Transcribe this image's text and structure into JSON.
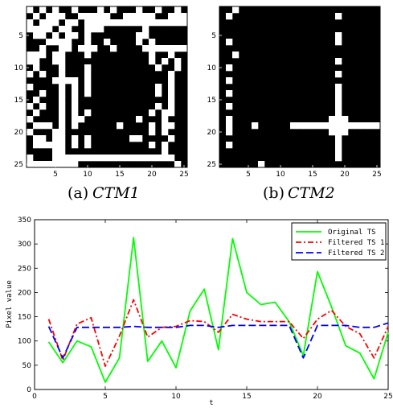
{
  "chart_data": [
    {
      "type": "heatmap",
      "panel": "a",
      "caption_prefix": "(a)",
      "caption_math": "CTM1",
      "size": 25,
      "xticks": [
        5,
        10,
        15,
        20,
        25
      ],
      "yticks": [
        5,
        10,
        15,
        20,
        25
      ],
      "colors": {
        "on": "#ffffff",
        "off": "#000000"
      },
      "on_cells": [
        [
          1,
          1
        ],
        [
          1,
          3
        ],
        [
          1,
          5
        ],
        [
          1,
          8
        ],
        [
          1,
          12
        ],
        [
          1,
          14
        ],
        [
          1,
          18
        ],
        [
          1,
          21
        ],
        [
          1,
          24
        ],
        [
          2,
          2
        ],
        [
          2,
          4
        ],
        [
          2,
          5
        ],
        [
          2,
          6
        ],
        [
          2,
          9
        ],
        [
          2,
          10
        ],
        [
          2,
          11
        ],
        [
          2,
          12
        ],
        [
          2,
          13
        ],
        [
          2,
          16
        ],
        [
          2,
          17
        ],
        [
          2,
          18
        ],
        [
          2,
          19
        ],
        [
          2,
          20
        ],
        [
          2,
          23
        ],
        [
          2,
          24
        ],
        [
          2,
          25
        ],
        [
          3,
          1
        ],
        [
          3,
          3
        ],
        [
          3,
          4
        ],
        [
          3,
          5
        ],
        [
          3,
          7
        ],
        [
          3,
          8
        ],
        [
          3,
          10
        ],
        [
          3,
          11
        ],
        [
          3,
          12
        ],
        [
          3,
          13
        ],
        [
          3,
          14
        ],
        [
          3,
          15
        ],
        [
          3,
          16
        ],
        [
          3,
          17
        ],
        [
          3,
          18
        ],
        [
          3,
          19
        ],
        [
          3,
          20
        ],
        [
          3,
          21
        ],
        [
          3,
          22
        ],
        [
          3,
          23
        ],
        [
          3,
          24
        ],
        [
          3,
          25
        ],
        [
          4,
          1
        ],
        [
          4,
          2
        ],
        [
          4,
          3
        ],
        [
          4,
          4
        ],
        [
          4,
          6
        ],
        [
          4,
          7
        ],
        [
          4,
          10
        ],
        [
          4,
          11
        ],
        [
          4,
          12
        ],
        [
          4,
          19
        ],
        [
          5,
          2
        ],
        [
          5,
          3
        ],
        [
          5,
          5
        ],
        [
          5,
          7
        ],
        [
          5,
          8
        ],
        [
          5,
          10
        ],
        [
          5,
          18
        ],
        [
          5,
          19
        ],
        [
          6,
          4
        ],
        [
          6,
          5
        ],
        [
          6,
          6
        ],
        [
          6,
          7
        ],
        [
          6,
          10
        ],
        [
          6,
          13
        ],
        [
          6,
          18
        ],
        [
          6,
          20
        ],
        [
          7,
          3
        ],
        [
          7,
          6
        ],
        [
          7,
          7
        ],
        [
          7,
          9
        ],
        [
          7,
          10
        ],
        [
          7,
          11
        ],
        [
          7,
          14
        ],
        [
          7,
          19
        ],
        [
          7,
          20
        ],
        [
          7,
          21
        ],
        [
          7,
          22
        ],
        [
          7,
          23
        ],
        [
          7,
          24
        ],
        [
          7,
          25
        ],
        [
          8,
          1
        ],
        [
          8,
          2
        ],
        [
          8,
          3
        ],
        [
          8,
          5
        ],
        [
          8,
          6
        ],
        [
          8,
          10
        ],
        [
          8,
          20
        ],
        [
          8,
          23
        ],
        [
          9,
          1
        ],
        [
          9,
          2
        ],
        [
          9,
          5
        ],
        [
          9,
          6
        ],
        [
          9,
          20
        ],
        [
          9,
          22
        ],
        [
          9,
          24
        ],
        [
          10,
          2
        ],
        [
          10,
          6
        ],
        [
          10,
          10
        ],
        [
          10,
          21
        ],
        [
          10,
          24
        ],
        [
          11,
          1
        ],
        [
          11,
          3
        ],
        [
          11,
          6
        ],
        [
          11,
          10
        ],
        [
          11,
          23
        ],
        [
          12,
          5
        ],
        [
          12,
          6
        ],
        [
          12,
          7
        ],
        [
          12,
          8
        ],
        [
          12,
          10
        ],
        [
          12,
          23
        ],
        [
          13,
          1
        ],
        [
          13,
          6
        ],
        [
          13,
          8
        ],
        [
          13,
          10
        ],
        [
          13,
          21
        ],
        [
          13,
          23
        ],
        [
          14,
          3
        ],
        [
          14,
          6
        ],
        [
          14,
          8
        ],
        [
          14,
          10
        ],
        [
          14,
          21
        ],
        [
          14,
          23
        ],
        [
          15,
          2
        ],
        [
          15,
          6
        ],
        [
          15,
          8
        ],
        [
          15,
          23
        ],
        [
          16,
          1
        ],
        [
          16,
          3
        ],
        [
          16,
          6
        ],
        [
          16,
          8
        ],
        [
          16,
          21
        ],
        [
          16,
          23
        ],
        [
          17,
          2
        ],
        [
          17,
          6
        ],
        [
          17,
          8
        ],
        [
          17,
          10
        ],
        [
          17,
          20
        ],
        [
          17,
          22
        ],
        [
          17,
          23
        ],
        [
          18,
          1
        ],
        [
          18,
          6
        ],
        [
          18,
          8
        ],
        [
          18,
          9
        ],
        [
          18,
          18
        ],
        [
          18,
          22
        ],
        [
          19,
          2
        ],
        [
          19,
          3
        ],
        [
          19,
          4
        ],
        [
          19,
          6
        ],
        [
          19,
          8
        ],
        [
          19,
          15
        ],
        [
          19,
          20
        ],
        [
          19,
          22
        ],
        [
          19,
          23
        ],
        [
          20,
          1
        ],
        [
          20,
          5
        ],
        [
          20,
          6
        ],
        [
          20,
          20
        ],
        [
          20,
          22
        ],
        [
          21,
          2
        ],
        [
          21,
          3
        ],
        [
          21,
          5
        ],
        [
          21,
          6
        ],
        [
          21,
          8
        ],
        [
          21,
          10
        ],
        [
          21,
          17
        ],
        [
          21,
          18
        ],
        [
          21,
          23
        ],
        [
          22,
          2
        ],
        [
          22,
          3
        ],
        [
          22,
          4
        ],
        [
          22,
          5
        ],
        [
          22,
          6
        ],
        [
          22,
          8
        ],
        [
          22,
          10
        ],
        [
          22,
          20
        ],
        [
          22,
          22
        ],
        [
          23,
          5
        ],
        [
          23,
          6
        ],
        [
          23,
          22
        ],
        [
          24,
          1
        ],
        [
          24,
          5
        ],
        [
          24,
          6
        ],
        [
          24,
          7
        ],
        [
          24,
          8
        ],
        [
          24,
          9
        ],
        [
          24,
          10
        ],
        [
          24,
          11
        ],
        [
          24,
          12
        ],
        [
          24,
          13
        ],
        [
          24,
          14
        ],
        [
          24,
          15
        ],
        [
          24,
          16
        ],
        [
          24,
          17
        ],
        [
          24,
          18
        ],
        [
          24,
          19
        ],
        [
          24,
          20
        ],
        [
          24,
          21
        ],
        [
          24,
          22
        ],
        [
          24,
          23
        ],
        [
          25,
          1
        ],
        [
          25,
          2
        ],
        [
          25,
          3
        ],
        [
          25,
          4
        ],
        [
          25,
          5
        ],
        [
          25,
          6
        ],
        [
          25,
          7
        ],
        [
          25,
          8
        ],
        [
          25,
          24
        ]
      ]
    },
    {
      "type": "heatmap",
      "panel": "b",
      "caption_prefix": "(b)",
      "caption_math": "CTM2",
      "size": 25,
      "xticks": [
        5,
        10,
        15,
        20,
        25
      ],
      "yticks": [
        5,
        10,
        15,
        20,
        25
      ],
      "colors": {
        "on": "#ffffff",
        "off": "#000000"
      },
      "on_cells": [
        [
          1,
          3
        ],
        [
          2,
          2
        ],
        [
          2,
          19
        ],
        [
          5,
          19
        ],
        [
          6,
          2
        ],
        [
          6,
          19
        ],
        [
          8,
          3
        ],
        [
          9,
          19
        ],
        [
          10,
          2
        ],
        [
          11,
          19
        ],
        [
          12,
          2
        ],
        [
          13,
          19
        ],
        [
          14,
          2
        ],
        [
          14,
          19
        ],
        [
          15,
          19
        ],
        [
          16,
          2
        ],
        [
          16,
          19
        ],
        [
          17,
          19
        ],
        [
          18,
          2
        ],
        [
          18,
          18
        ],
        [
          18,
          19
        ],
        [
          18,
          20
        ],
        [
          19,
          2
        ],
        [
          19,
          6
        ],
        [
          19,
          12
        ],
        [
          19,
          13
        ],
        [
          19,
          14
        ],
        [
          19,
          15
        ],
        [
          19,
          16
        ],
        [
          19,
          17
        ],
        [
          19,
          18
        ],
        [
          19,
          19
        ],
        [
          19,
          20
        ],
        [
          19,
          21
        ],
        [
          19,
          22
        ],
        [
          19,
          23
        ],
        [
          19,
          24
        ],
        [
          19,
          25
        ],
        [
          20,
          2
        ],
        [
          20,
          18
        ],
        [
          20,
          19
        ],
        [
          20,
          20
        ],
        [
          21,
          19
        ],
        [
          22,
          2
        ],
        [
          22,
          19
        ],
        [
          23,
          19
        ],
        [
          24,
          19
        ],
        [
          25,
          7
        ]
      ]
    },
    {
      "type": "line",
      "x": [
        1,
        2,
        3,
        4,
        5,
        6,
        7,
        8,
        9,
        10,
        11,
        12,
        13,
        14,
        15,
        16,
        17,
        18,
        19,
        20,
        21,
        22,
        23,
        24,
        25
      ],
      "xlabel": "t",
      "ylabel": "Pixel value",
      "xlim": [
        0,
        25
      ],
      "ylim": [
        0,
        350
      ],
      "xticks": [
        0,
        5,
        10,
        15,
        20,
        25
      ],
      "yticks": [
        0,
        50,
        100,
        150,
        200,
        250,
        300,
        350
      ],
      "legend_position": "top-right",
      "series": [
        {
          "name": "Original TS",
          "color": "#00ff00",
          "dash": "",
          "values": [
            98,
            55,
            100,
            88,
            15,
            65,
            313,
            58,
            100,
            45,
            162,
            207,
            82,
            311,
            200,
            175,
            180,
            140,
            70,
            243,
            170,
            90,
            75,
            22,
            118
          ]
        },
        {
          "name": "Filtered TS 1",
          "color": "#ff0000",
          "dash": "7 3 2 3",
          "values": [
            145,
            60,
            135,
            148,
            48,
            110,
            185,
            108,
            128,
            130,
            142,
            140,
            118,
            155,
            145,
            140,
            140,
            140,
            105,
            145,
            163,
            130,
            115,
            65,
            130
          ]
        },
        {
          "name": "Filtered TS 2",
          "color": "#0000ff",
          "dash": "9 4",
          "values": [
            130,
            65,
            128,
            128,
            128,
            128,
            130,
            128,
            128,
            128,
            132,
            132,
            128,
            132,
            132,
            132,
            132,
            132,
            65,
            132,
            132,
            132,
            128,
            128,
            137
          ]
        }
      ]
    }
  ]
}
